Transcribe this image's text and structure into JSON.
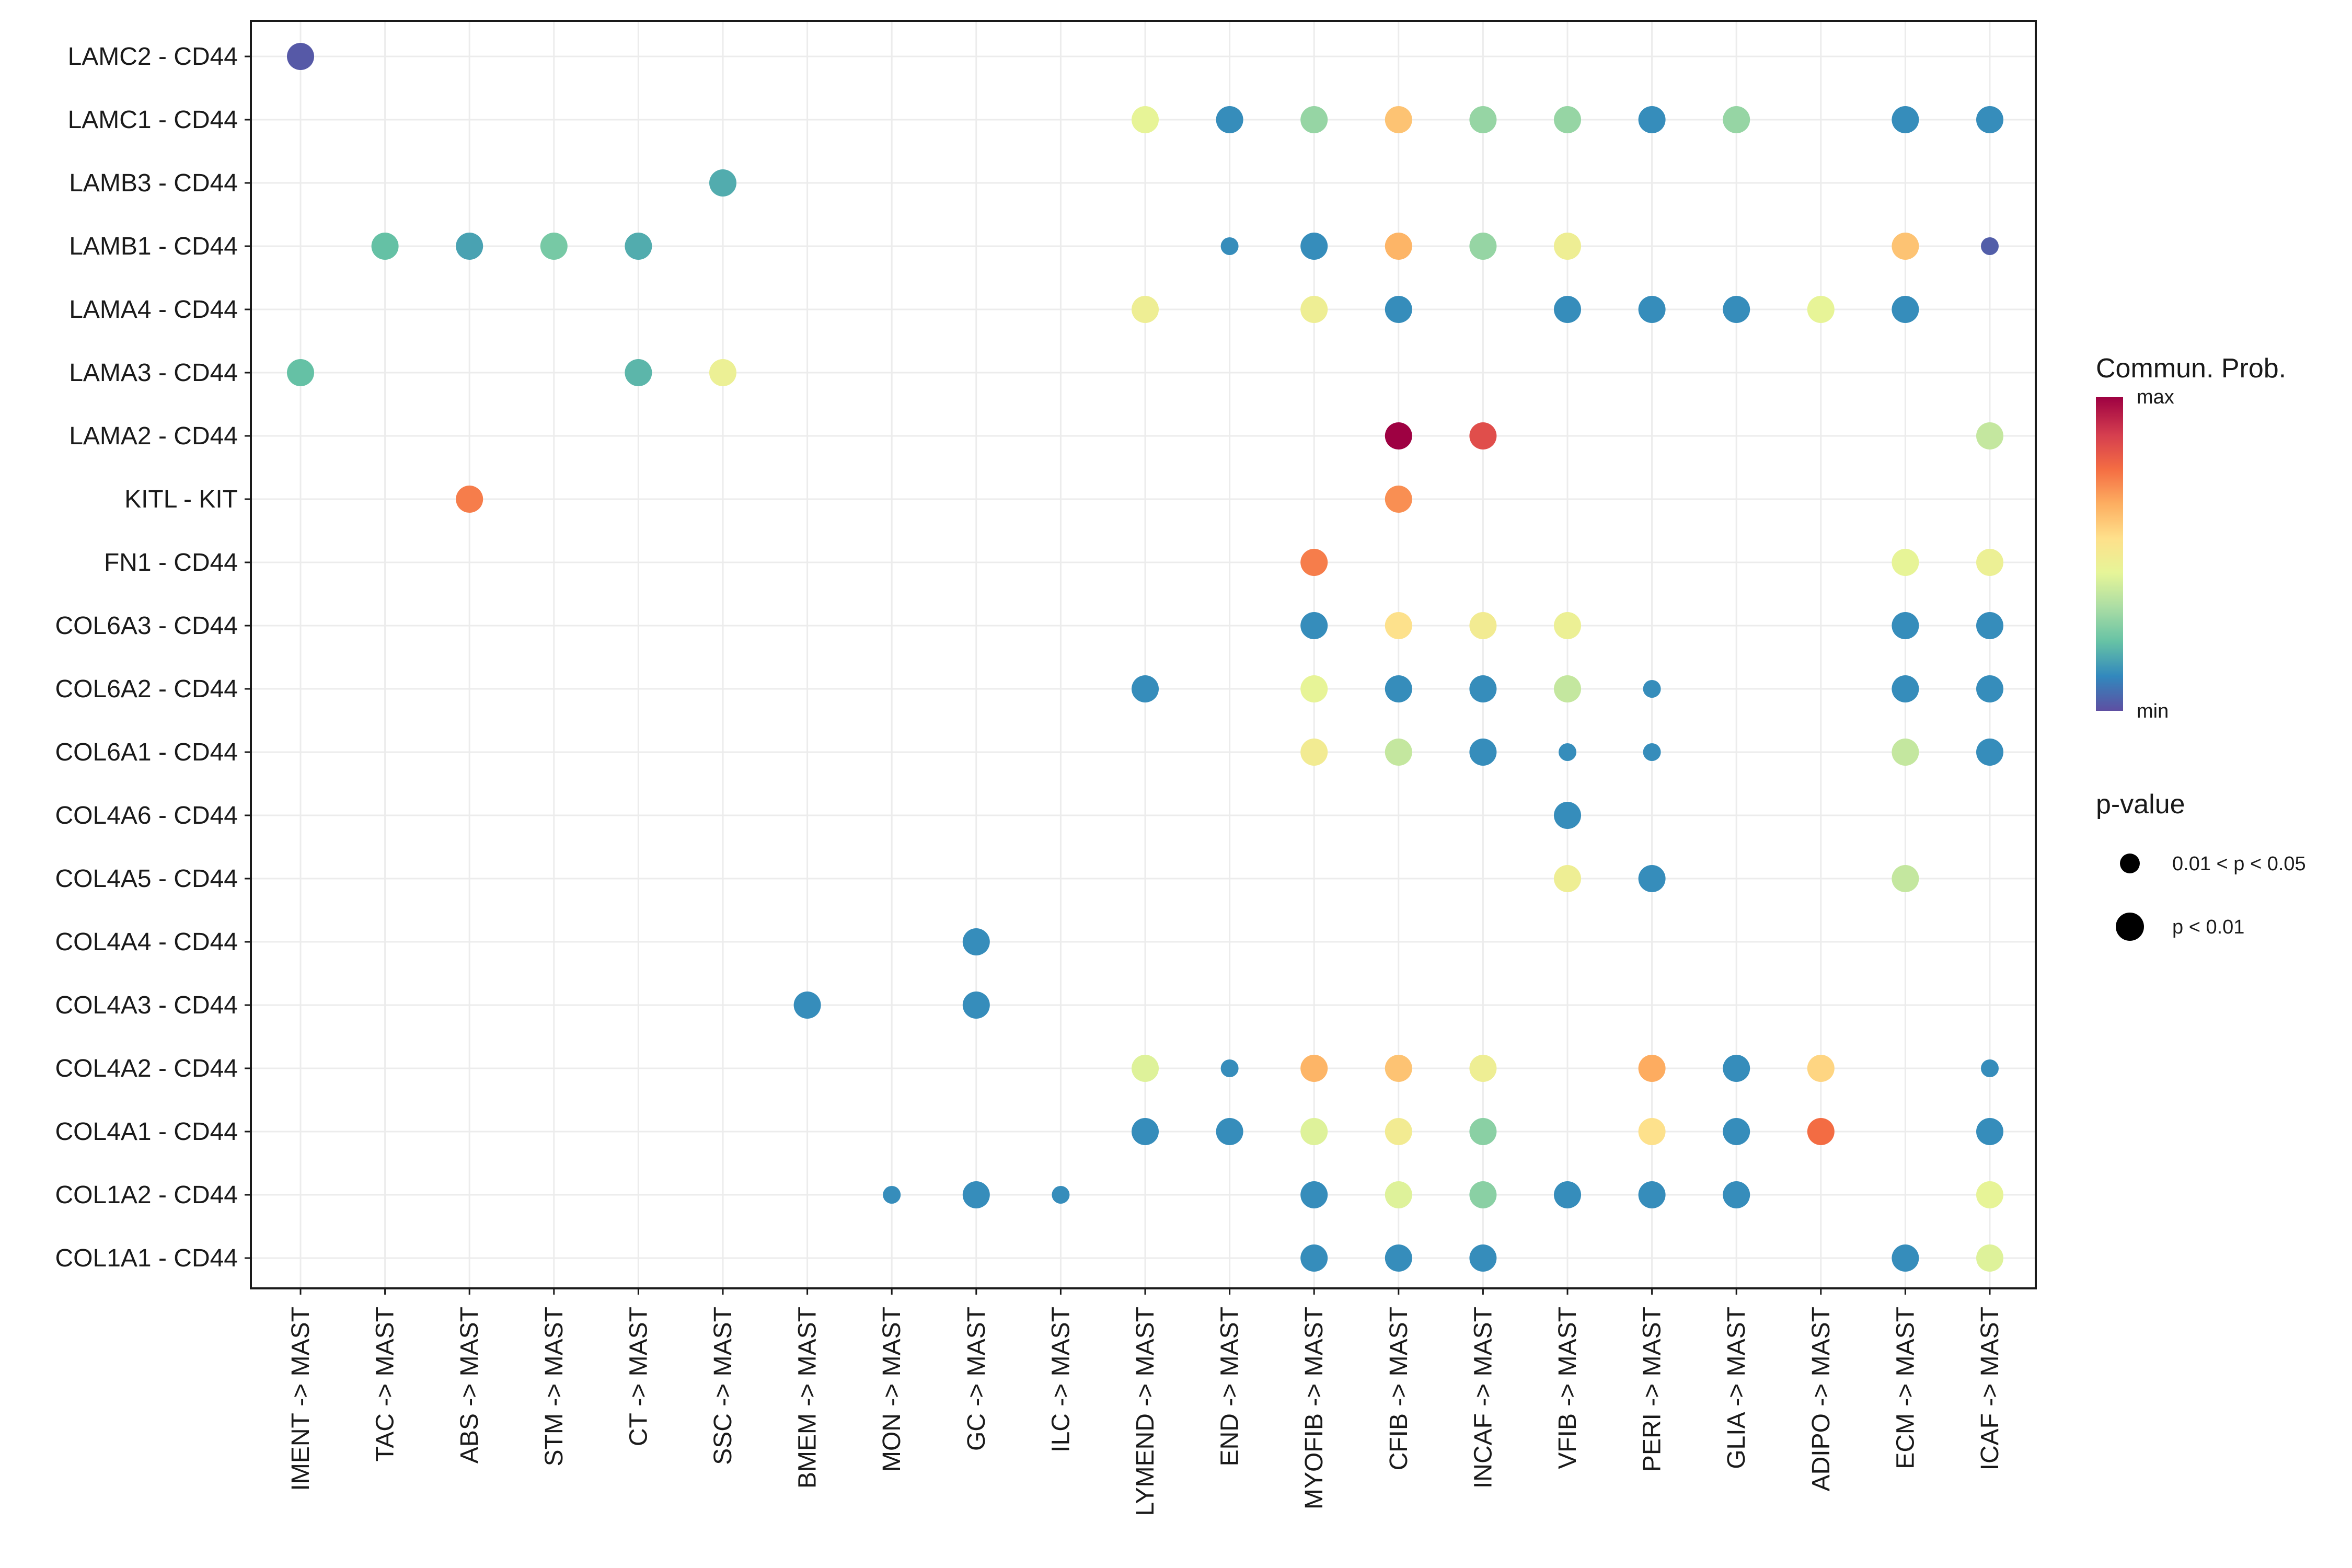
{
  "chart_data": {
    "type": "dotplot",
    "rows": [
      "LAMC2 - CD44",
      "LAMC1 - CD44",
      "LAMB3 - CD44",
      "LAMB1 - CD44",
      "LAMA4 - CD44",
      "LAMA3 - CD44",
      "LAMA2 - CD44",
      "KITL - KIT",
      "FN1 - CD44",
      "COL6A3 - CD44",
      "COL6A2 - CD44",
      "COL6A1 - CD44",
      "COL4A6 - CD44",
      "COL4A5 - CD44",
      "COL4A4 - CD44",
      "COL4A3 - CD44",
      "COL4A2 - CD44",
      "COL4A1 - CD44",
      "COL1A2 - CD44",
      "COL1A1 - CD44"
    ],
    "columns": [
      "IMENT -> MAST",
      "TAC -> MAST",
      "ABS -> MAST",
      "STM -> MAST",
      "CT -> MAST",
      "SSC -> MAST",
      "BMEM -> MAST",
      "MON -> MAST",
      "GC -> MAST",
      "ILC -> MAST",
      "LYMEND -> MAST",
      "END -> MAST",
      "MYOFIB -> MAST",
      "CFIB -> MAST",
      "INCAF -> MAST",
      "VFIB -> MAST",
      "PERI -> MAST",
      "GLIA -> MAST",
      "ADIPO -> MAST",
      "ECM -> MAST",
      "ICAF -> MAST"
    ],
    "points_note": "each point: [row_index, col_index, relative communication probability 0(min)-1(max), p-value class: 1 = p<0.01, 0 = 0.01<p<0.05]",
    "points": [
      [
        0,
        0,
        0.02,
        1
      ],
      [
        1,
        10,
        0.45,
        1
      ],
      [
        1,
        11,
        0.12,
        1
      ],
      [
        1,
        12,
        0.3,
        1
      ],
      [
        1,
        13,
        0.62,
        1
      ],
      [
        1,
        14,
        0.3,
        1
      ],
      [
        1,
        15,
        0.3,
        1
      ],
      [
        1,
        16,
        0.12,
        1
      ],
      [
        1,
        17,
        0.3,
        1
      ],
      [
        1,
        19,
        0.12,
        1
      ],
      [
        1,
        20,
        0.12,
        1
      ],
      [
        2,
        5,
        0.18,
        1
      ],
      [
        3,
        1,
        0.22,
        1
      ],
      [
        3,
        2,
        0.16,
        1
      ],
      [
        3,
        3,
        0.25,
        1
      ],
      [
        3,
        4,
        0.18,
        1
      ],
      [
        3,
        11,
        0.12,
        0
      ],
      [
        3,
        12,
        0.12,
        1
      ],
      [
        3,
        13,
        0.65,
        1
      ],
      [
        3,
        14,
        0.3,
        1
      ],
      [
        3,
        15,
        0.48,
        1
      ],
      [
        3,
        19,
        0.62,
        1
      ],
      [
        3,
        20,
        0.03,
        0
      ],
      [
        4,
        10,
        0.48,
        1
      ],
      [
        4,
        12,
        0.48,
        1
      ],
      [
        4,
        13,
        0.12,
        1
      ],
      [
        4,
        15,
        0.12,
        1
      ],
      [
        4,
        16,
        0.12,
        1
      ],
      [
        4,
        17,
        0.12,
        1
      ],
      [
        4,
        18,
        0.45,
        1
      ],
      [
        4,
        19,
        0.12,
        1
      ],
      [
        5,
        0,
        0.22,
        1
      ],
      [
        5,
        4,
        0.2,
        1
      ],
      [
        5,
        5,
        0.47,
        1
      ],
      [
        6,
        13,
        1.0,
        1
      ],
      [
        6,
        14,
        0.85,
        1
      ],
      [
        6,
        20,
        0.38,
        1
      ],
      [
        7,
        2,
        0.75,
        1
      ],
      [
        7,
        13,
        0.72,
        1
      ],
      [
        8,
        12,
        0.75,
        1
      ],
      [
        8,
        19,
        0.45,
        1
      ],
      [
        8,
        20,
        0.47,
        1
      ],
      [
        9,
        12,
        0.12,
        1
      ],
      [
        9,
        13,
        0.55,
        1
      ],
      [
        9,
        14,
        0.5,
        1
      ],
      [
        9,
        15,
        0.47,
        1
      ],
      [
        9,
        19,
        0.12,
        1
      ],
      [
        9,
        20,
        0.12,
        1
      ],
      [
        10,
        10,
        0.12,
        1
      ],
      [
        10,
        12,
        0.45,
        1
      ],
      [
        10,
        13,
        0.12,
        1
      ],
      [
        10,
        14,
        0.12,
        1
      ],
      [
        10,
        15,
        0.38,
        1
      ],
      [
        10,
        16,
        0.12,
        0
      ],
      [
        10,
        19,
        0.12,
        1
      ],
      [
        10,
        20,
        0.12,
        1
      ],
      [
        11,
        12,
        0.5,
        1
      ],
      [
        11,
        13,
        0.38,
        1
      ],
      [
        11,
        14,
        0.12,
        1
      ],
      [
        11,
        15,
        0.12,
        0
      ],
      [
        11,
        16,
        0.12,
        0
      ],
      [
        11,
        19,
        0.38,
        1
      ],
      [
        11,
        20,
        0.12,
        1
      ],
      [
        12,
        15,
        0.12,
        1
      ],
      [
        13,
        15,
        0.48,
        1
      ],
      [
        13,
        16,
        0.12,
        1
      ],
      [
        13,
        19,
        0.38,
        1
      ],
      [
        14,
        8,
        0.12,
        1
      ],
      [
        15,
        6,
        0.12,
        1
      ],
      [
        15,
        8,
        0.12,
        1
      ],
      [
        16,
        10,
        0.43,
        1
      ],
      [
        16,
        11,
        0.12,
        0
      ],
      [
        16,
        12,
        0.65,
        1
      ],
      [
        16,
        13,
        0.62,
        1
      ],
      [
        16,
        14,
        0.48,
        1
      ],
      [
        16,
        16,
        0.67,
        1
      ],
      [
        16,
        17,
        0.12,
        1
      ],
      [
        16,
        18,
        0.58,
        1
      ],
      [
        16,
        20,
        0.12,
        0
      ],
      [
        17,
        10,
        0.12,
        1
      ],
      [
        17,
        11,
        0.12,
        1
      ],
      [
        17,
        12,
        0.43,
        1
      ],
      [
        17,
        13,
        0.5,
        1
      ],
      [
        17,
        14,
        0.28,
        1
      ],
      [
        17,
        16,
        0.55,
        1
      ],
      [
        17,
        17,
        0.12,
        1
      ],
      [
        17,
        18,
        0.78,
        1
      ],
      [
        17,
        20,
        0.12,
        1
      ],
      [
        18,
        7,
        0.12,
        0
      ],
      [
        18,
        8,
        0.12,
        1
      ],
      [
        18,
        9,
        0.12,
        0
      ],
      [
        18,
        12,
        0.12,
        1
      ],
      [
        18,
        13,
        0.43,
        1
      ],
      [
        18,
        14,
        0.28,
        1
      ],
      [
        18,
        15,
        0.12,
        1
      ],
      [
        18,
        16,
        0.12,
        1
      ],
      [
        18,
        17,
        0.12,
        1
      ],
      [
        18,
        20,
        0.45,
        1
      ],
      [
        19,
        12,
        0.12,
        1
      ],
      [
        19,
        13,
        0.12,
        1
      ],
      [
        19,
        14,
        0.12,
        1
      ],
      [
        19,
        19,
        0.12,
        1
      ],
      [
        19,
        20,
        0.43,
        1
      ]
    ],
    "color_scale": {
      "title": "Commun. Prob.",
      "max_label": "max",
      "min_label": "min",
      "palette": [
        "#5e4fa2",
        "#3288bd",
        "#66c2a5",
        "#abdda4",
        "#e6f598",
        "#fee08b",
        "#fdae61",
        "#f46d43",
        "#d53e4f",
        "#9e0142"
      ]
    },
    "size_legend": {
      "title": "p-value",
      "items": [
        {
          "label": "0.01 < p < 0.05",
          "p_class": 0
        },
        {
          "label": "p < 0.01",
          "p_class": 1
        }
      ]
    },
    "grid": true
  }
}
